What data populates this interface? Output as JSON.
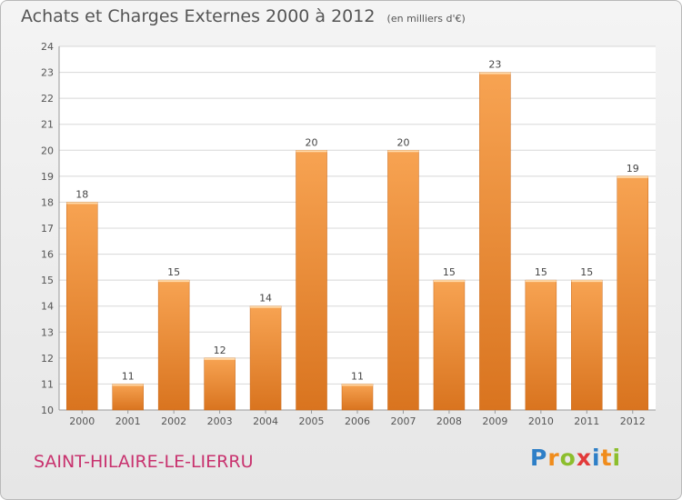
{
  "title": "Achats et Charges Externes 2000 à 2012",
  "unit_label": "(en milliers d'€)",
  "commune": "SAINT-HILAIRE-LE-LIERRU",
  "brand": {
    "letters": [
      {
        "ch": "P",
        "color": "#2e7fc7"
      },
      {
        "ch": "r",
        "color": "#f08c1c"
      },
      {
        "ch": "o",
        "color": "#8cbe2d"
      },
      {
        "ch": "x",
        "color": "#e23a3a"
      },
      {
        "ch": "i",
        "color": "#2e7fc7"
      },
      {
        "ch": "t",
        "color": "#f08c1c"
      },
      {
        "ch": "i",
        "color": "#8cbe2d"
      }
    ]
  },
  "colors": {
    "bar_light": "#f7a352",
    "bar_dark": "#d9741f",
    "grid": "#d8d8d8",
    "axis": "#555555"
  },
  "chart_data": {
    "type": "bar",
    "categories": [
      "2000",
      "2001",
      "2002",
      "2003",
      "2004",
      "2005",
      "2006",
      "2007",
      "2008",
      "2009",
      "2010",
      "2011",
      "2012"
    ],
    "values": [
      18,
      11,
      15,
      12,
      14,
      20,
      11,
      20,
      15,
      23,
      15,
      15,
      19
    ],
    "ylim": [
      10,
      24
    ],
    "yticks": [
      10,
      11,
      12,
      13,
      14,
      15,
      16,
      17,
      18,
      19,
      20,
      21,
      22,
      23,
      24
    ],
    "grid": true,
    "data_labels": true
  }
}
